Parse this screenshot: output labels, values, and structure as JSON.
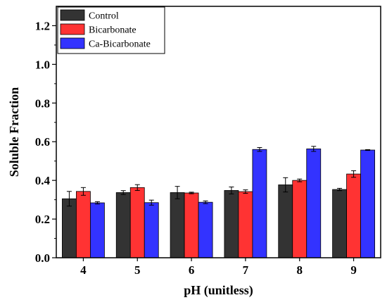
{
  "chart_data": {
    "type": "bar",
    "title": "",
    "xlabel": "pH (unitless)",
    "ylabel": "Soluble Fraction",
    "categories": [
      "4",
      "5",
      "6",
      "7",
      "8",
      "9"
    ],
    "ylim": [
      0.0,
      1.3
    ],
    "yticks": [
      "0.0",
      "0.2",
      "0.4",
      "0.6",
      "0.8",
      "1.0",
      "1.2"
    ],
    "grid": false,
    "legend_position": "top-left",
    "series": [
      {
        "name": "Control",
        "color": "#333333",
        "values": [
          0.305,
          0.337,
          0.337,
          0.348,
          0.377,
          0.353
        ],
        "errors": [
          0.038,
          0.01,
          0.032,
          0.018,
          0.037,
          0.006
        ]
      },
      {
        "name": "Bicarbonate",
        "color": "#ff3333",
        "values": [
          0.343,
          0.363,
          0.335,
          0.342,
          0.4,
          0.433
        ],
        "errors": [
          0.02,
          0.015,
          0.004,
          0.009,
          0.007,
          0.017
        ]
      },
      {
        "name": "Ca-Bicarbonate",
        "color": "#3333ff",
        "values": [
          0.284,
          0.285,
          0.287,
          0.56,
          0.563,
          0.557
        ],
        "errors": [
          0.006,
          0.013,
          0.007,
          0.01,
          0.013,
          0.002
        ]
      }
    ]
  }
}
